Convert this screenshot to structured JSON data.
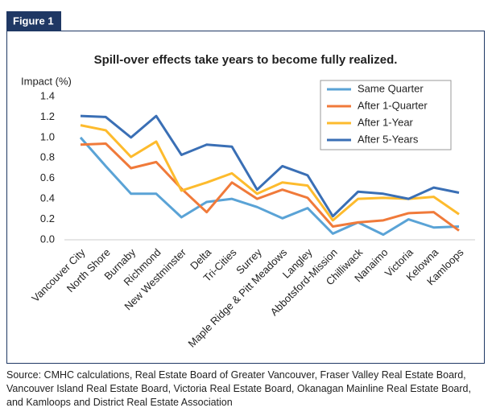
{
  "figure_label": "Figure 1",
  "chart_data": {
    "type": "line",
    "title": "Spill-over effects take years to become fully realized.",
    "y_label": "Impact (%)",
    "categories": [
      "Vancouver City",
      "North Shore",
      "Burnaby",
      "Richmond",
      "New Westminster",
      "Delta",
      "Tri-Cities",
      "Surrey",
      "Maple Ridge & Pitt Meadows",
      "Langley",
      "Abbotsford-Mission",
      "Chilliwack",
      "Nanaimo",
      "Victoria",
      "Kelowna",
      "Kamloops"
    ],
    "series": [
      {
        "name": "Same Quarter",
        "color": "#5aa3d6",
        "values": [
          1.0,
          0.72,
          0.45,
          0.45,
          0.22,
          0.37,
          0.4,
          0.32,
          0.21,
          0.31,
          0.06,
          0.17,
          0.05,
          0.2,
          0.12,
          0.13
        ]
      },
      {
        "name": "After 1-Quarter",
        "color": "#f07a3a",
        "values": [
          0.93,
          0.94,
          0.7,
          0.76,
          0.5,
          0.27,
          0.56,
          0.4,
          0.49,
          0.41,
          0.13,
          0.17,
          0.19,
          0.26,
          0.27,
          0.09
        ]
      },
      {
        "name": "After 1-Year",
        "color": "#fdbb2d",
        "values": [
          1.12,
          1.07,
          0.81,
          0.96,
          0.48,
          0.56,
          0.65,
          0.45,
          0.56,
          0.53,
          0.19,
          0.4,
          0.41,
          0.4,
          0.42,
          0.25
        ]
      },
      {
        "name": "After 5-Years",
        "color": "#3a6fb5",
        "values": [
          1.21,
          1.2,
          1.0,
          1.21,
          0.83,
          0.93,
          0.91,
          0.49,
          0.72,
          0.63,
          0.23,
          0.47,
          0.45,
          0.4,
          0.51,
          0.46
        ]
      }
    ],
    "ylim": [
      0,
      1.4
    ],
    "yticks": [
      {
        "value": 0,
        "label": "0.0"
      },
      0.2,
      0.4,
      0.6,
      0.8,
      {
        "value": 1,
        "label": "1.0"
      },
      1.2,
      1.4
    ]
  },
  "source": "Source: CMHC calculations, Real Estate Board of Greater Vancouver, Fraser Valley Real Estate Board, Vancouver Island Real Estate Board, Victoria Real Estate Board, Okanagan Mainline Real Estate Board, and Kamloops and District Real Estate Association"
}
